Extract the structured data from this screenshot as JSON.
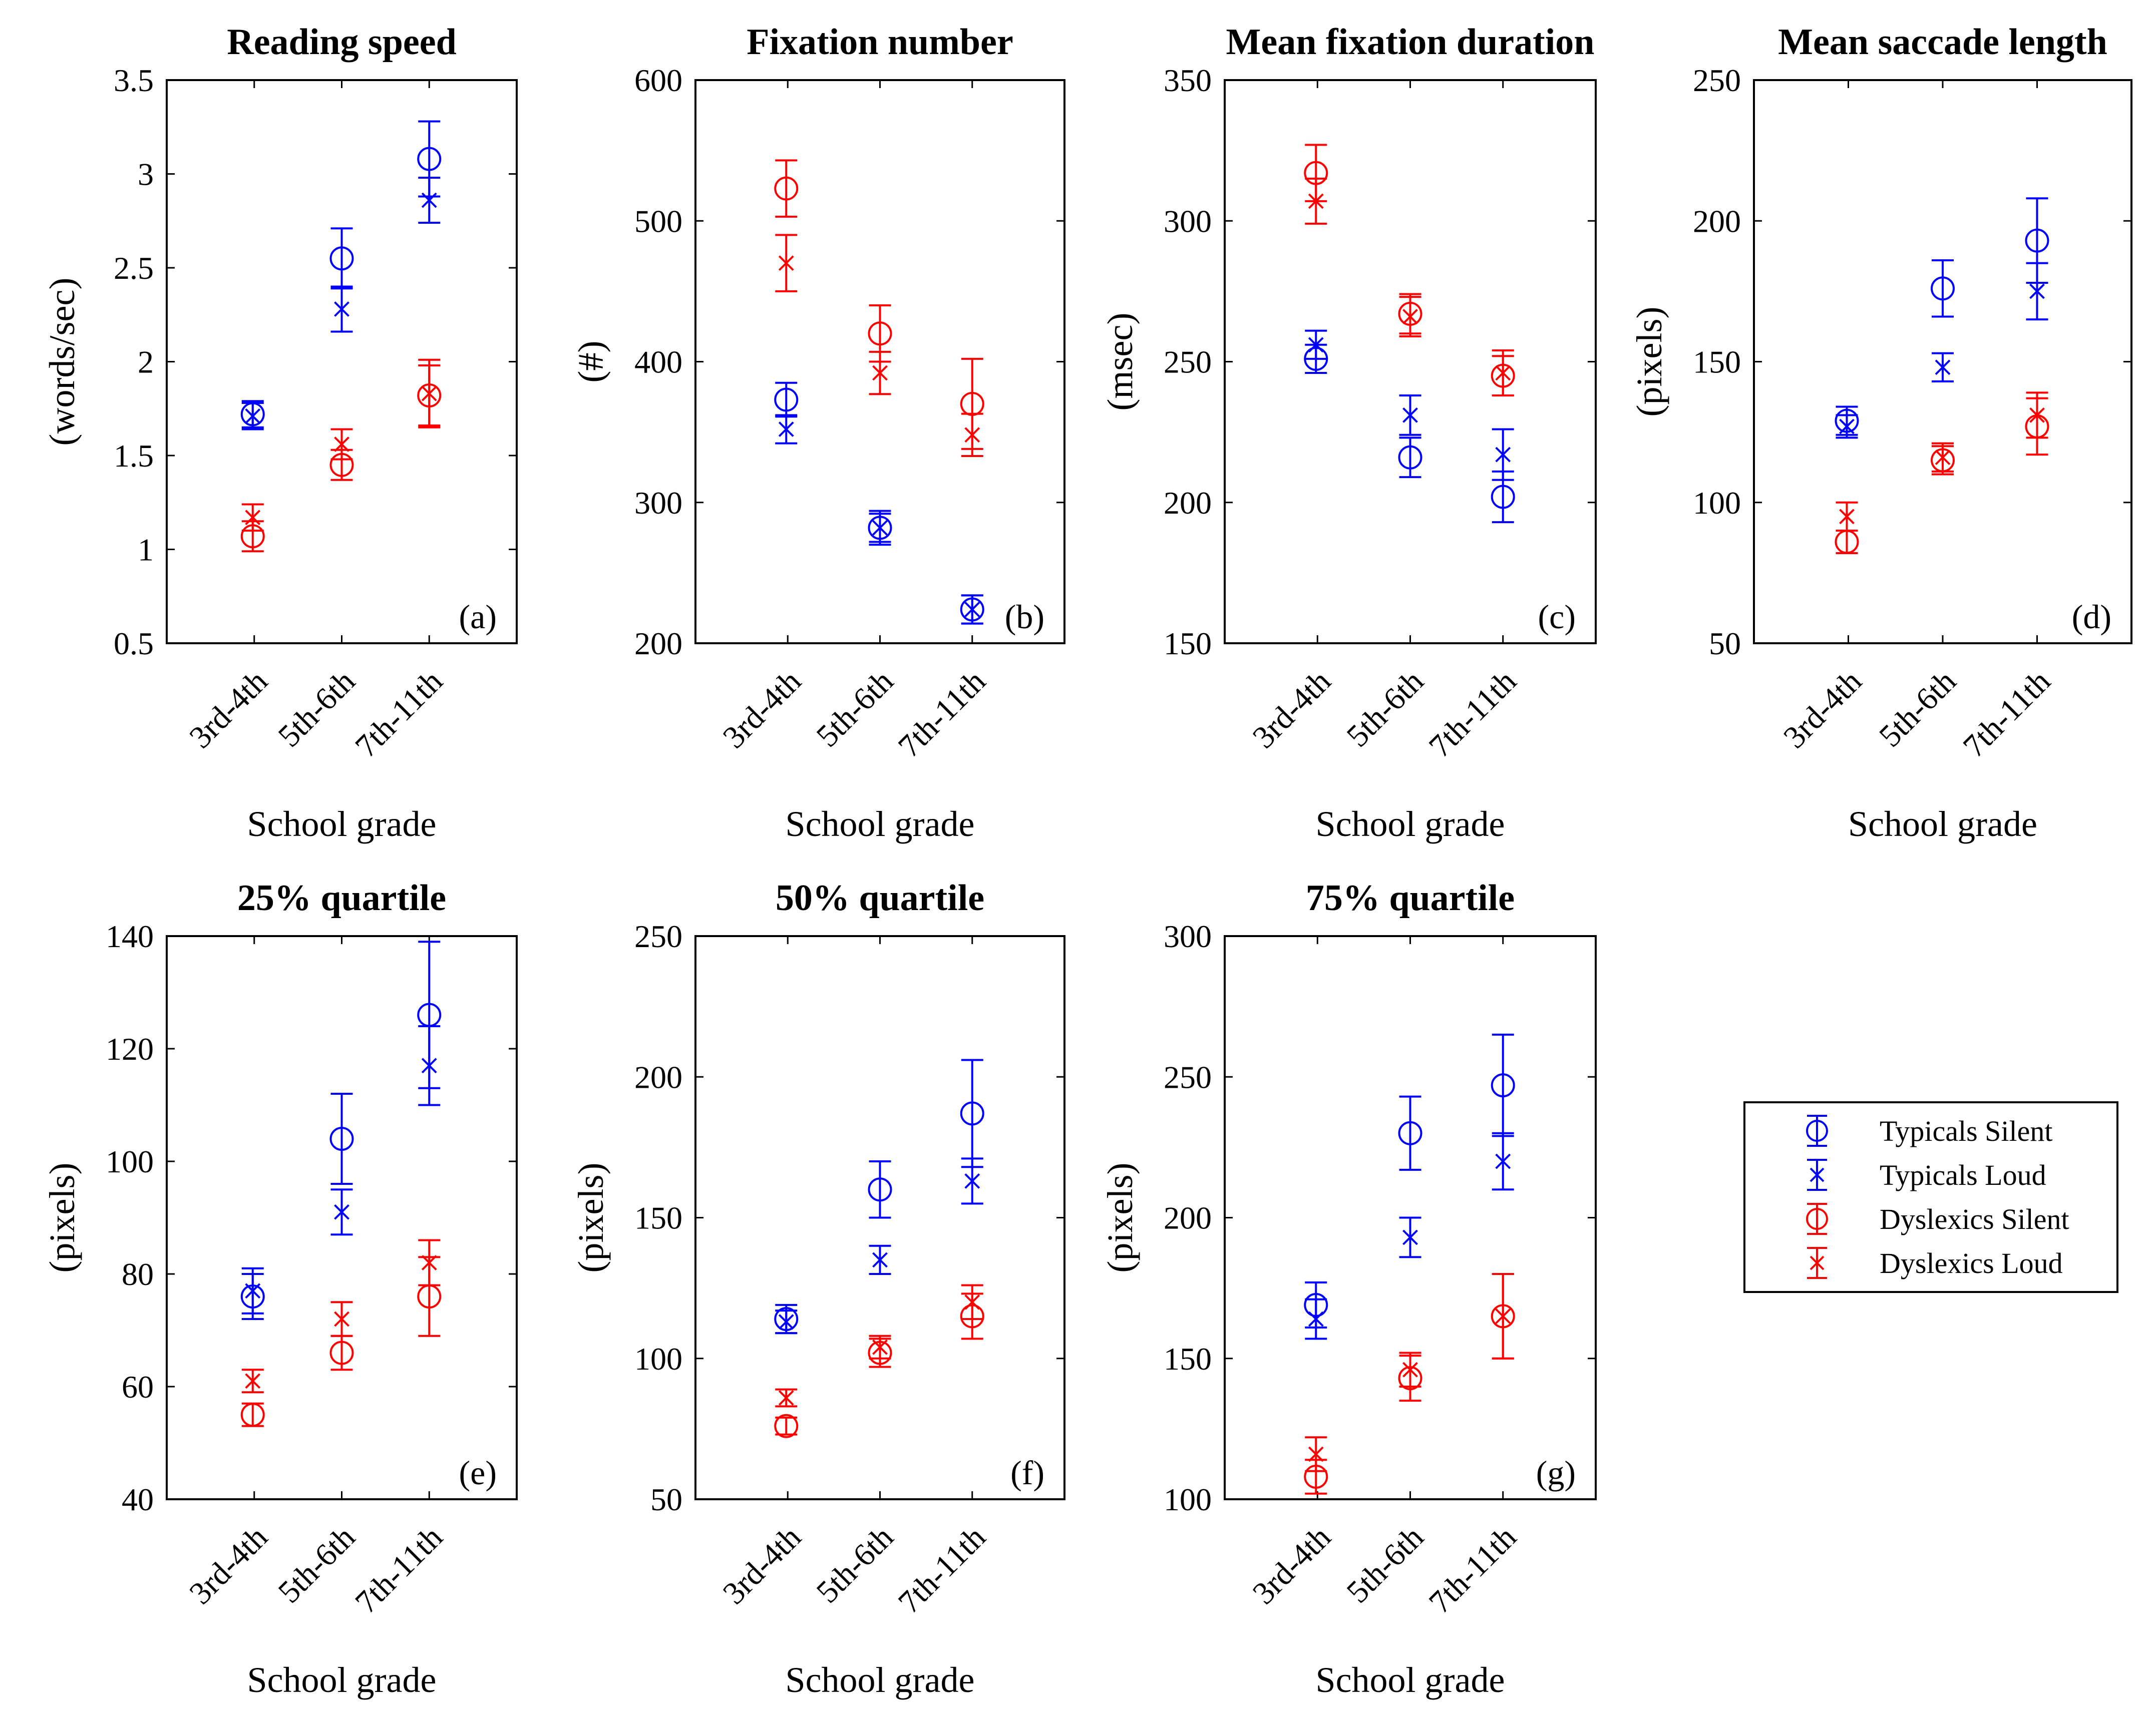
{
  "figure": {
    "colors": {
      "typicals": "#0000ff",
      "dyslexics": "#ff0000",
      "axis": "#000000"
    },
    "legend": {
      "entries": [
        {
          "label": "Typicals Silent",
          "group": "typicals",
          "marker": "circle"
        },
        {
          "label": "Typicals Loud",
          "group": "typicals",
          "marker": "x"
        },
        {
          "label": "Dyslexics Silent",
          "group": "dyslexics",
          "marker": "circle"
        },
        {
          "label": "Dyslexics Loud",
          "group": "dyslexics",
          "marker": "x"
        }
      ]
    }
  },
  "chart_data": [
    {
      "type": "scatter",
      "panel": "(a)",
      "title": "Reading speed",
      "xlabel": "School grade",
      "ylabel": "(words/sec)",
      "categories": [
        "3rd-4th",
        "5th-6th",
        "7th-11th"
      ],
      "ylim": [
        0.5,
        3.5
      ],
      "yticks": [
        "0.5",
        "1",
        "1.5",
        "2",
        "2.5",
        "3",
        "3.5"
      ],
      "series": [
        {
          "name": "Typicals Silent",
          "values": [
            1.72,
            2.55,
            3.08
          ],
          "err": [
            0.07,
            0.16,
            0.2
          ]
        },
        {
          "name": "Typicals Loud",
          "values": [
            1.71,
            2.28,
            2.86
          ],
          "err": [
            0.07,
            0.12,
            0.12
          ]
        },
        {
          "name": "Dyslexics Silent",
          "values": [
            1.07,
            1.45,
            1.82
          ],
          "err": [
            0.08,
            0.08,
            0.16
          ]
        },
        {
          "name": "Dyslexics Loud",
          "values": [
            1.17,
            1.56,
            1.83
          ],
          "err": [
            0.07,
            0.08,
            0.18
          ]
        }
      ]
    },
    {
      "type": "scatter",
      "panel": "(b)",
      "title": "Fixation number",
      "xlabel": "School grade",
      "ylabel": "(#)",
      "categories": [
        "3rd-4th",
        "5th-6th",
        "7th-11th"
      ],
      "ylim": [
        200,
        600
      ],
      "yticks": [
        "200",
        "300",
        "400",
        "500",
        "600"
      ],
      "series": [
        {
          "name": "Typicals Silent",
          "values": [
            373,
            282,
            224
          ],
          "err": [
            12,
            12,
            10
          ]
        },
        {
          "name": "Typicals Loud",
          "values": [
            352,
            282,
            224
          ],
          "err": [
            10,
            10,
            10
          ]
        },
        {
          "name": "Dyslexics Silent",
          "values": [
            523,
            420,
            370
          ],
          "err": [
            20,
            20,
            32
          ]
        },
        {
          "name": "Dyslexics Loud",
          "values": [
            470,
            392,
            348
          ],
          "err": [
            20,
            15,
            15
          ]
        }
      ]
    },
    {
      "type": "scatter",
      "panel": "(c)",
      "title": "Mean fixation duration",
      "xlabel": "School grade",
      "ylabel": "(msec)",
      "categories": [
        "3rd-4th",
        "5th-6th",
        "7th-11th"
      ],
      "ylim": [
        150,
        350
      ],
      "yticks": [
        "150",
        "200",
        "250",
        "300",
        "350"
      ],
      "series": [
        {
          "name": "Typicals Silent",
          "values": [
            251,
            216,
            202
          ],
          "err": [
            5,
            7,
            9
          ]
        },
        {
          "name": "Typicals Loud",
          "values": [
            256,
            231,
            217
          ],
          "err": [
            5,
            7,
            9
          ]
        },
        {
          "name": "Dyslexics Silent",
          "values": [
            317,
            267,
            245
          ],
          "err": [
            10,
            7,
            7
          ]
        },
        {
          "name": "Dyslexics Loud",
          "values": [
            307,
            266,
            246
          ],
          "err": [
            8,
            7,
            8
          ]
        }
      ]
    },
    {
      "type": "scatter",
      "panel": "(d)",
      "title": "Mean saccade length",
      "xlabel": "School grade",
      "ylabel": "(pixels)",
      "categories": [
        "3rd-4th",
        "5th-6th",
        "7th-11th"
      ],
      "ylim": [
        50,
        250
      ],
      "yticks": [
        "50",
        "100",
        "150",
        "200",
        "250"
      ],
      "series": [
        {
          "name": "Typicals Silent",
          "values": [
            129,
            176,
            193
          ],
          "err": [
            5,
            10,
            15
          ]
        },
        {
          "name": "Typicals Loud",
          "values": [
            127,
            148,
            175
          ],
          "err": [
            4,
            5,
            10
          ]
        },
        {
          "name": "Dyslexics Silent",
          "values": [
            86,
            115,
            127
          ],
          "err": [
            4,
            5,
            10
          ]
        },
        {
          "name": "Dyslexics Loud",
          "values": [
            95,
            116,
            131
          ],
          "err": [
            5,
            5,
            8
          ]
        }
      ]
    },
    {
      "type": "scatter",
      "panel": "(e)",
      "title": "25% quartile",
      "xlabel": "School grade",
      "ylabel": "(pixels)",
      "categories": [
        "3rd-4th",
        "5th-6th",
        "7th-11th"
      ],
      "ylim": [
        40,
        140
      ],
      "yticks": [
        "40",
        "60",
        "80",
        "100",
        "120",
        "140"
      ],
      "series": [
        {
          "name": "Typicals Silent",
          "values": [
            76,
            104,
            126
          ],
          "err": [
            4,
            8,
            13
          ]
        },
        {
          "name": "Typicals Loud",
          "values": [
            77,
            91,
            117
          ],
          "err": [
            4,
            4,
            7
          ]
        },
        {
          "name": "Dyslexics Silent",
          "values": [
            55,
            66,
            76
          ],
          "err": [
            2,
            3,
            7
          ]
        },
        {
          "name": "Dyslexics Loud",
          "values": [
            61,
            72,
            82
          ],
          "err": [
            2,
            3,
            4
          ]
        }
      ]
    },
    {
      "type": "scatter",
      "panel": "(f)",
      "title": "50% quartile",
      "xlabel": "School grade",
      "ylabel": "(pixels)",
      "categories": [
        "3rd-4th",
        "5th-6th",
        "7th-11th"
      ],
      "ylim": [
        50,
        250
      ],
      "yticks": [
        "50",
        "100",
        "150",
        "200",
        "250"
      ],
      "series": [
        {
          "name": "Typicals Silent",
          "values": [
            114,
            160,
            187
          ],
          "err": [
            5,
            10,
            19
          ]
        },
        {
          "name": "Typicals Loud",
          "values": [
            113,
            135,
            163
          ],
          "err": [
            4,
            5,
            8
          ]
        },
        {
          "name": "Dyslexics Silent",
          "values": [
            76,
            102,
            115
          ],
          "err": [
            3,
            5,
            8
          ]
        },
        {
          "name": "Dyslexics Loud",
          "values": [
            86,
            104,
            120
          ],
          "err": [
            3,
            4,
            6
          ]
        }
      ]
    },
    {
      "type": "scatter",
      "panel": "(g)",
      "title": "75% quartile",
      "xlabel": "School grade",
      "ylabel": "(pixels)",
      "categories": [
        "3rd-4th",
        "5th-6th",
        "7th-11th"
      ],
      "ylim": [
        100,
        300
      ],
      "yticks": [
        "100",
        "150",
        "200",
        "250",
        "300"
      ],
      "series": [
        {
          "name": "Typicals Silent",
          "values": [
            169,
            230,
            247
          ],
          "err": [
            8,
            13,
            18
          ]
        },
        {
          "name": "Typicals Loud",
          "values": [
            164,
            193,
            220
          ],
          "err": [
            7,
            7,
            10
          ]
        },
        {
          "name": "Dyslexics Silent",
          "values": [
            108,
            143,
            165
          ],
          "err": [
            6,
            8,
            15
          ]
        },
        {
          "name": "Dyslexics Loud",
          "values": [
            116,
            146,
            165
          ],
          "err": [
            6,
            6,
            15
          ]
        }
      ]
    }
  ]
}
